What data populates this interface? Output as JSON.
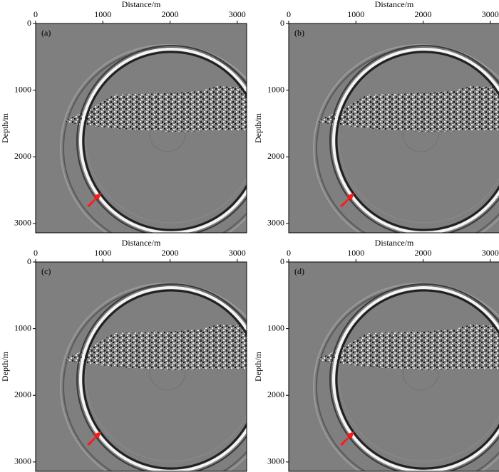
{
  "chart_data": [
    {
      "type": "image",
      "label": "(a)",
      "xlabel": "Distance/m",
      "ylabel": "Depth/m",
      "xlim": [
        0,
        3140
      ],
      "ylim": [
        3140,
        0
      ],
      "xticks": [
        0,
        1000,
        2000,
        3000
      ],
      "yticks": [
        0,
        1000,
        2000,
        3000
      ]
    },
    {
      "type": "image",
      "label": "(b)",
      "xlabel": "Distance/m",
      "ylabel": "Depth/m",
      "xlim": [
        0,
        3140
      ],
      "ylim": [
        3140,
        0
      ],
      "xticks": [
        0,
        1000,
        2000,
        3000
      ],
      "yticks": [
        0,
        1000,
        2000,
        3000
      ]
    },
    {
      "type": "image",
      "label": "(c)",
      "xlabel": "Distance/m",
      "ylabel": "Depth/m",
      "xlim": [
        0,
        3140
      ],
      "ylim": [
        3140,
        0
      ],
      "xticks": [
        0,
        1000,
        2000,
        3000
      ],
      "yticks": [
        0,
        1000,
        2000,
        3000
      ]
    },
    {
      "type": "image",
      "label": "(d)",
      "xlabel": "Distance/m",
      "ylabel": "Depth/m",
      "xlim": [
        0,
        3140
      ],
      "ylim": [
        3140,
        0
      ],
      "xticks": [
        0,
        1000,
        2000,
        3000
      ],
      "yticks": [
        0,
        1000,
        2000,
        3000
      ]
    }
  ]
}
